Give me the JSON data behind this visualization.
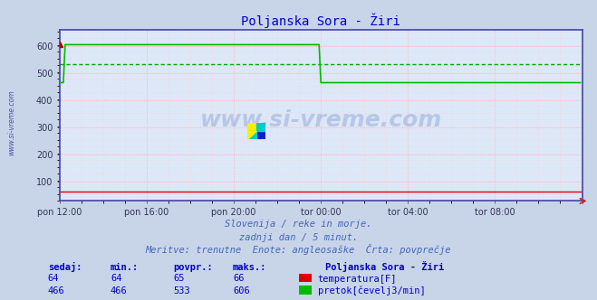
{
  "title": "Poljanska Sora - Žiri",
  "title_color": "#0000cc",
  "bg_color": "#c8d4e8",
  "plot_bg_color": "#dce8f8",
  "frame_color": "#4444aa",
  "grid_color": "#ffaaaa",
  "xlim": [
    0,
    288
  ],
  "ylim": [
    30,
    660
  ],
  "yticks": [
    100,
    200,
    300,
    400,
    500,
    600
  ],
  "xtick_labels": [
    "pon 12:00",
    "pon 16:00",
    "pon 20:00",
    "tor 00:00",
    "tor 04:00",
    "tor 08:00"
  ],
  "xtick_positions": [
    0,
    48,
    96,
    144,
    192,
    240
  ],
  "temp_color": "#dd0000",
  "flow_color": "#00bb00",
  "avg_flow_color": "#00aa00",
  "temp_value": 64,
  "flow_high": 606,
  "flow_low": 466,
  "flow_avg": 533,
  "flow_drop_x": 144,
  "subtitle1": "Slovenija / reke in morje.",
  "subtitle2": "zadnji dan / 5 minut.",
  "subtitle3": "Meritve: trenutne  Enote: angleosaške  Črta: povprečje",
  "text_color": "#4466bb",
  "footer_color": "#0000cc",
  "table_header": "Poljanska Sora - Žiri",
  "col_headers": [
    "sedaj:",
    "min.:",
    "povpr.:",
    "maks.:"
  ],
  "temp_row": [
    "64",
    "64",
    "65",
    "66"
  ],
  "flow_row": [
    "466",
    "466",
    "533",
    "606"
  ],
  "label_temp": "temperatura[F]",
  "label_flow": "pretok[čevelj3/min]",
  "watermark": "www.si-vreme.com",
  "sidebar_text": "www.si-vreme.com"
}
